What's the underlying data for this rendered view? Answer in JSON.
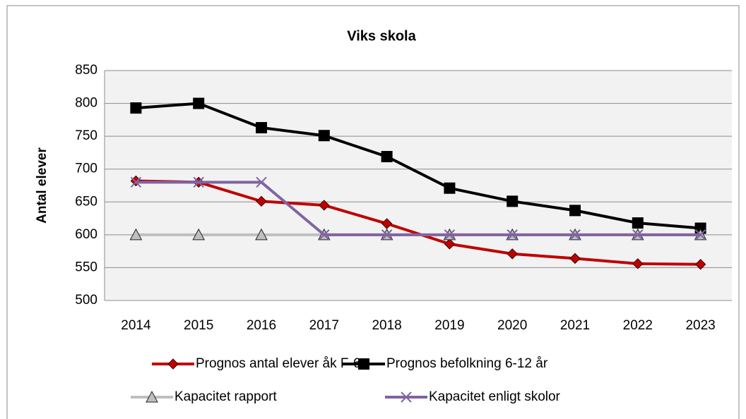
{
  "chart_data": {
    "type": "line",
    "title": "Viks skola",
    "y_label": "Antal elever",
    "categories": [
      "2014",
      "2015",
      "2016",
      "2017",
      "2018",
      "2019",
      "2020",
      "2021",
      "2022",
      "2023"
    ],
    "series": [
      {
        "name": "Prognos antal elever åk F-6",
        "color": "#c00000",
        "marker": "diamond",
        "values": [
          682,
          680,
          651,
          645,
          617,
          586,
          571,
          564,
          556,
          555
        ]
      },
      {
        "name": "Prognos befolkning 6-12 år",
        "color": "#000000",
        "marker": "square",
        "values": [
          793,
          800,
          763,
          751,
          719,
          671,
          651,
          637,
          618,
          610
        ]
      },
      {
        "name": "Kapacitet rapport",
        "color": "#bfbfbf",
        "marker": "triangle",
        "values": [
          600,
          600,
          600,
          600,
          600,
          600,
          600,
          600,
          600,
          600
        ]
      },
      {
        "name": "Kapacitet enligt skolor",
        "color": "#8064a2",
        "marker": "x",
        "values": [
          680,
          680,
          680,
          600,
          600,
          600,
          600,
          600,
          600,
          600
        ]
      }
    ],
    "ylim": [
      500,
      850
    ],
    "yticks": [
      500,
      550,
      600,
      650,
      700,
      750,
      800,
      850
    ],
    "grid": true,
    "legend": "bottom"
  }
}
